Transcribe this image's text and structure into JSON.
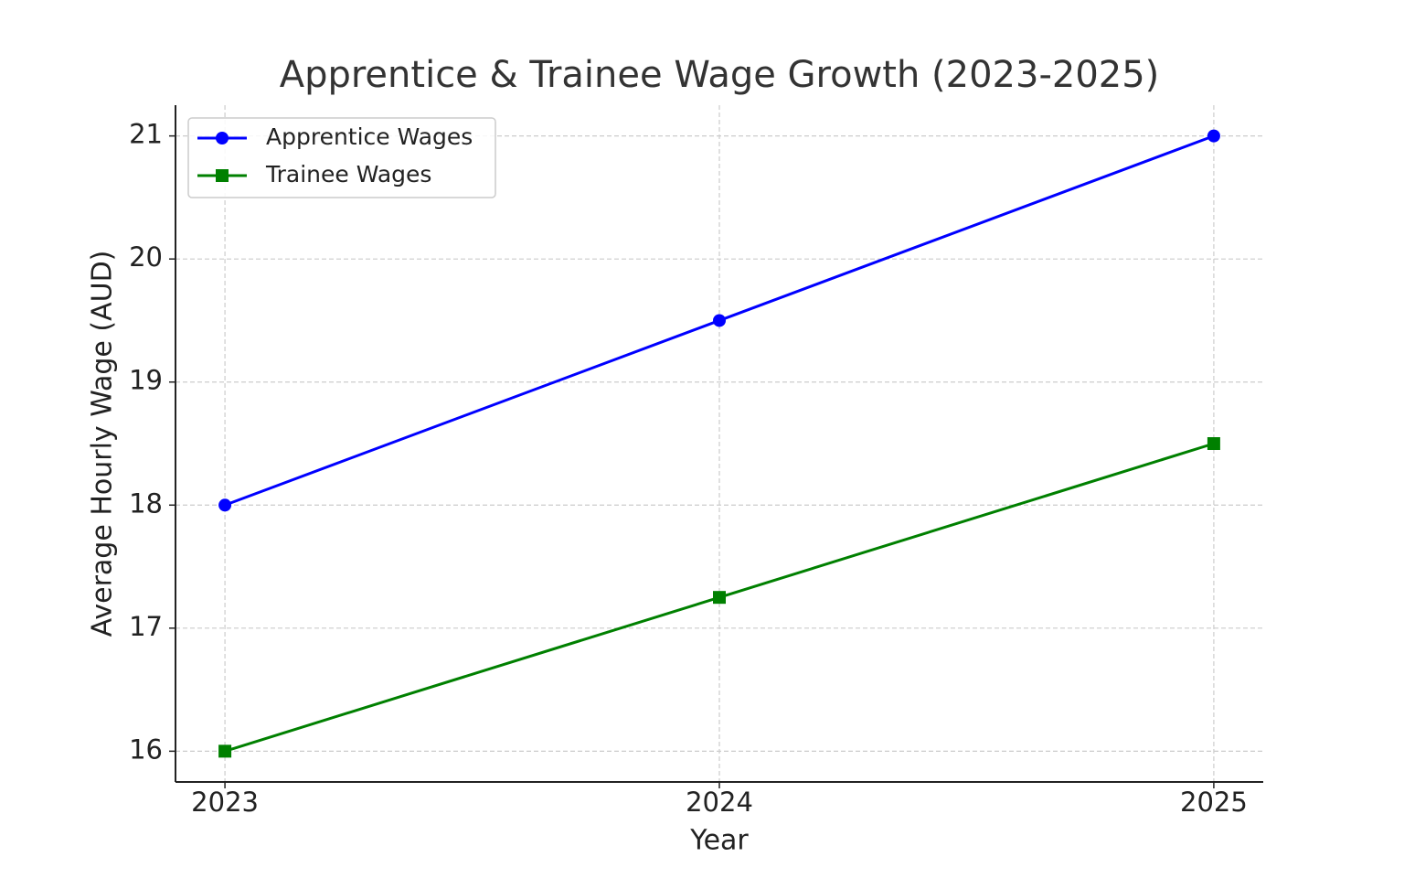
{
  "chart_data": {
    "type": "line",
    "title": "Apprentice & Trainee Wage Growth (2023-2025)",
    "x_label": "Year",
    "y_label": "Average Hourly Wage (AUD)",
    "x": [
      2023,
      2024,
      2025
    ],
    "series": [
      {
        "name": "Apprentice Wages",
        "color": "#0000ff",
        "marker": "circle",
        "values": [
          18,
          19.5,
          21
        ]
      },
      {
        "name": "Trainee Wages",
        "color": "#008000",
        "marker": "square",
        "values": [
          16,
          17.25,
          18.5
        ]
      }
    ],
    "xlim": [
      2022.9,
      2025.1
    ],
    "xticks": [
      2023,
      2024,
      2025
    ],
    "ylim": [
      15.75,
      21.25
    ],
    "yticks": [
      16,
      17,
      18,
      19,
      20,
      21
    ],
    "grid": true,
    "legend": "upper left"
  }
}
